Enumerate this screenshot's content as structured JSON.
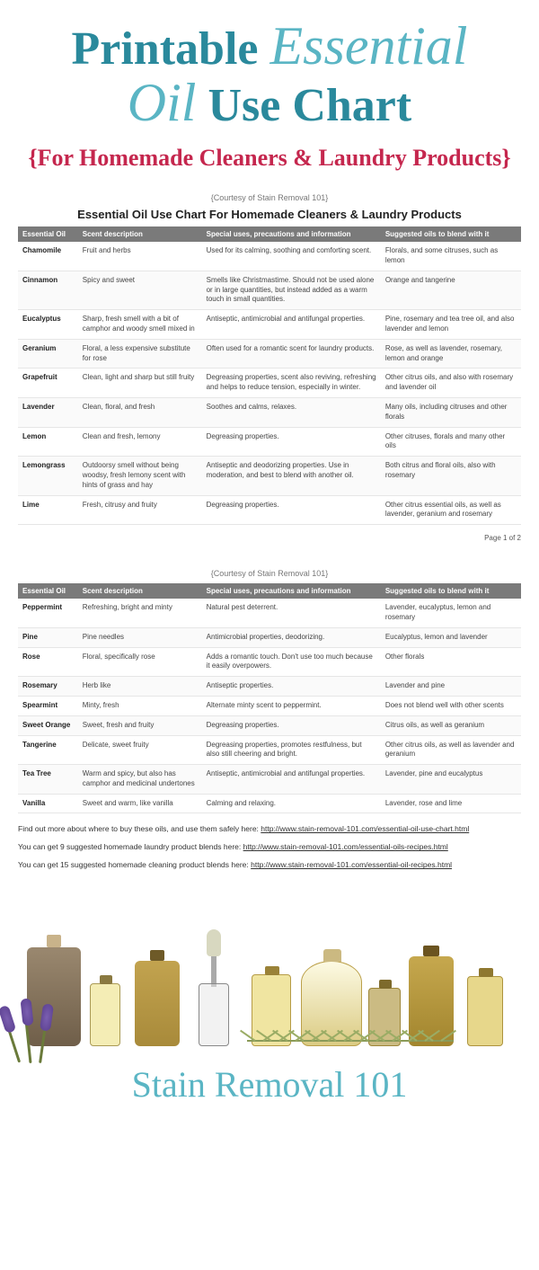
{
  "colors": {
    "teal": "#2a899c",
    "script_teal": "#5ab5c4",
    "crimson": "#c5274e",
    "header_bg": "#7a7a7a",
    "row_border": "#e6e6e6"
  },
  "header": {
    "word1": "Printable",
    "word2": "Essential",
    "word3": "Oil",
    "word4": "Use Chart",
    "subtitle": "{For Homemade Cleaners & Laundry Products}"
  },
  "courtesy": "{Courtesy of Stain Removal 101}",
  "chart_title": "Essential Oil Use Chart For Homemade Cleaners & Laundry Products",
  "columns": [
    "Essential Oil",
    "Scent description",
    "Special uses, precautions and information",
    "Suggested oils to blend with it"
  ],
  "page1_rows": [
    [
      "Chamomile",
      "Fruit and herbs",
      "Used for its calming, soothing and comforting scent.",
      "Florals, and some citruses, such as lemon"
    ],
    [
      "Cinnamon",
      "Spicy and sweet",
      "Smells like Christmastime. Should not be used alone or in large quantities, but instead added as a warm touch in small quantities.",
      "Orange and tangerine"
    ],
    [
      "Eucalyptus",
      "Sharp, fresh smell with a bit of camphor and woody smell mixed in",
      "Antiseptic, antimicrobial and antifungal properties.",
      "Pine, rosemary and tea tree oil, and also lavender and lemon"
    ],
    [
      "Geranium",
      "Floral, a less expensive substitute for rose",
      "Often used for a romantic scent for laundry products.",
      "Rose, as well as lavender, rosemary, lemon and orange"
    ],
    [
      "Grapefruit",
      "Clean, light and sharp but still fruity",
      "Degreasing properties, scent also reviving, refreshing and helps to reduce tension, especially in winter.",
      "Other citrus oils, and also with rosemary and lavender oil"
    ],
    [
      "Lavender",
      "Clean, floral, and fresh",
      "Soothes and calms, relaxes.",
      "Many oils, including citruses and other florals"
    ],
    [
      "Lemon",
      "Clean and fresh, lemony",
      "Degreasing properties.",
      "Other citruses, florals and many other oils"
    ],
    [
      "Lemongrass",
      "Outdoorsy smell without being woodsy, fresh lemony scent with hints of grass and hay",
      "Antiseptic and deodorizing properties. Use in moderation, and best to blend with another oil.",
      "Both citrus and floral oils, also with rosemary"
    ],
    [
      "Lime",
      "Fresh, citrusy and fruity",
      "Degreasing properties.",
      "Other citrus essential oils, as well as lavender, geranium and rosemary"
    ]
  ],
  "page1_footer": "Page 1 of 2",
  "page2_rows": [
    [
      "Peppermint",
      "Refreshing, bright and minty",
      "Natural pest deterrent.",
      "Lavender, eucalyptus, lemon and rosemary"
    ],
    [
      "Pine",
      "Pine needles",
      "Antimicrobial properties, deodorizing.",
      "Eucalyptus, lemon and lavender"
    ],
    [
      "Rose",
      "Floral, specifically rose",
      "Adds a romantic touch. Don't use too much because it easily overpowers.",
      "Other florals"
    ],
    [
      "Rosemary",
      "Herb like",
      "Antiseptic properties.",
      "Lavender and pine"
    ],
    [
      "Spearmint",
      "Minty, fresh",
      "Alternate minty scent to peppermint.",
      "Does not blend well with other scents"
    ],
    [
      "Sweet Orange",
      "Sweet, fresh and fruity",
      "Degreasing properties.",
      "Citrus oils, as well as geranium"
    ],
    [
      "Tangerine",
      "Delicate, sweet fruity",
      "Degreasing properties, promotes restfulness, but also still cheering and bright.",
      "Other citrus oils, as well as lavender and geranium"
    ],
    [
      "Tea Tree",
      "Warm and spicy, but also has camphor and medicinal undertones",
      "Antiseptic, antimicrobial and antifungal properties.",
      "Lavender, pine and eucalyptus"
    ],
    [
      "Vanilla",
      "Sweet and warm, like vanilla",
      "Calming and relaxing.",
      "Lavender, rose and lime"
    ]
  ],
  "links": {
    "l1_text": "Find out more about where to buy these oils, and use them safely here: ",
    "l1_url": "http://www.stain-removal-101.com/essential-oil-use-chart.html",
    "l2_text": "You can get 9 suggested homemade laundry product blends here: ",
    "l2_url": "http://www.stain-removal-101.com/essential-oils-recipes.html",
    "l3_text": "You can get 15 suggested homemade cleaning product blends here: ",
    "l3_url": "http://www.stain-removal-101.com/essential-oil-recipes.html"
  },
  "footer_logo": "Stain Removal 101"
}
